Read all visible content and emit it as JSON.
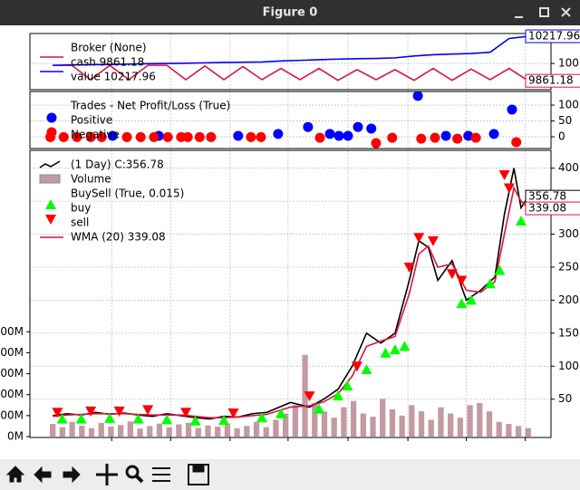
{
  "window": {
    "title": "Figure 0"
  },
  "chart_data": [
    {
      "type": "line",
      "legend_title": "Broker (None)",
      "xlim": [
        -4.8,
        104.8
      ],
      "ylim": [
        9790,
        10240
      ],
      "yticks": [
        {
          "value": 10000,
          "label": "100"
        }
      ],
      "xticks": [
        12.4,
        24.8,
        37.3,
        49.5,
        62.1,
        74.7,
        87.0,
        99.4
      ],
      "grid": true,
      "x": [
        0,
        4,
        8,
        12,
        16,
        20,
        24,
        28,
        32,
        36,
        40,
        44,
        48,
        52,
        56,
        60,
        64,
        68,
        72,
        76,
        80,
        84,
        88,
        92,
        96,
        100
      ],
      "series": [
        {
          "name": "cash 9861.18",
          "color": "#dc143c",
          "tag": true,
          "values": [
            9985,
            9985,
            9870,
            9985,
            9870,
            9985,
            9985,
            9870,
            9980,
            9870,
            9975,
            9870,
            9960,
            9870,
            9960,
            9865,
            9950,
            9870,
            9950,
            9865,
            9960,
            9865,
            9955,
            9870,
            9960,
            9861.18
          ]
        },
        {
          "name": "value 10217.96",
          "color": "#0000ff",
          "tag": true,
          "values": [
            9985,
            9988,
            9990,
            9992,
            9995,
            9998,
            10000,
            10002,
            10005,
            10008,
            10010,
            10012,
            10020,
            10025,
            10030,
            10035,
            10038,
            10040,
            10045,
            10060,
            10070,
            10075,
            10080,
            10090,
            10200,
            10217.96
          ]
        }
      ]
    },
    {
      "type": "scatter",
      "legend_title": "Trades - Net Profit/Loss (True)",
      "xlim": [
        -4.8,
        104.8
      ],
      "ylim": [
        -37,
        143
      ],
      "yticks": [
        0,
        50,
        100
      ],
      "xticks": [
        12.4,
        24.8,
        37.3,
        49.5,
        62.1,
        74.7,
        87.0,
        99.4
      ],
      "grid": true,
      "series": [
        {
          "name": "Positive",
          "color": "#0000ff",
          "x": [
            12.6,
            22.3,
            39.0,
            47.4,
            53.7,
            58.3,
            60.2,
            62.1,
            64.2,
            67.0,
            76.8,
            82.7,
            87.4,
            92.8,
            96.6
          ],
          "values": [
            3,
            3,
            3,
            9,
            31,
            9,
            3,
            3,
            31,
            26,
            129,
            3,
            3,
            9,
            86
          ]
        },
        {
          "name": "Negative",
          "color": "#ff0000",
          "x": [
            -0.5,
            2.3,
            5.1,
            8.0,
            10.3,
            15.6,
            18.5,
            21.3,
            24.2,
            27.0,
            28.4,
            30.9,
            33.3,
            41.7,
            43.8,
            56.2,
            68.0,
            71.4,
            77.5,
            80.4,
            85.1,
            89.0,
            97.5
          ],
          "values": [
            -1,
            -1,
            -1,
            -1,
            -1,
            -1,
            -1,
            -1,
            -1,
            -1,
            -1,
            -1,
            -1,
            -1,
            -1,
            -3,
            -20,
            -3,
            -6,
            -3,
            -6,
            -3,
            -17
          ]
        }
      ]
    },
    {
      "type": "line",
      "xlim": [
        -4.8,
        104.8
      ],
      "ylim": [
        -8,
        427
      ],
      "yticks": [
        50,
        100,
        150,
        200,
        250,
        300,
        350,
        400
      ],
      "xticks": [
        12.4,
        24.8,
        37.3,
        49.5,
        62.1,
        74.7,
        87.0,
        99.4
      ],
      "grid": true,
      "x": [
        0,
        3,
        6,
        9,
        12,
        15,
        18,
        21,
        24,
        27,
        30,
        33,
        36,
        39,
        42,
        45,
        50,
        54,
        57,
        60,
        63,
        66,
        69,
        72,
        75,
        77,
        79,
        81,
        84,
        87,
        90,
        93,
        95,
        97,
        98.5,
        100
      ],
      "series": [
        {
          "name": "(1 Day) C:356.78",
          "color": "#000000",
          "tag": true,
          "values": [
            25,
            28,
            26,
            30,
            27,
            29,
            26,
            24,
            28,
            25,
            22,
            20,
            24,
            23,
            28,
            30,
            45,
            38,
            50,
            65,
            100,
            150,
            135,
            150,
            230,
            290,
            280,
            230,
            260,
            200,
            215,
            235,
            330,
            400,
            340,
            356.78
          ]
        },
        {
          "name": "WMA (20) 339.08",
          "color": "#dc143c",
          "tag": true,
          "values": [
            24,
            26,
            27,
            28,
            28,
            28,
            27,
            26,
            26,
            26,
            24,
            22,
            22,
            23,
            25,
            27,
            38,
            40,
            46,
            58,
            85,
            130,
            138,
            145,
            210,
            270,
            282,
            250,
            255,
            215,
            212,
            228,
            300,
            370,
            350,
            339.08
          ]
        }
      ],
      "volume": {
        "name": "Volume",
        "color": "#c39aa2",
        "ylim": [
          0,
          1370000000
        ],
        "yticks": [
          {
            "value": 0,
            "label": "0M"
          },
          {
            "value": 100000000,
            "label": "00M"
          },
          {
            "value": 200000000,
            "label": "00M"
          },
          {
            "value": 300000000,
            "label": "00M"
          },
          {
            "value": 400000000,
            "label": "00M"
          },
          {
            "value": 500000000,
            "label": "00M"
          }
        ],
        "values": [
          60000000,
          45000000,
          70000000,
          52000000,
          40000000,
          65000000,
          48000000,
          55000000,
          72000000,
          38000000,
          50000000,
          62000000,
          44000000,
          58000000,
          66000000,
          41000000,
          53000000,
          47000000,
          60000000,
          39000000,
          51000000,
          70000000,
          45000000,
          80000000,
          110000000,
          150000000,
          390000000,
          160000000,
          120000000,
          90000000,
          140000000,
          170000000,
          110000000,
          95000000,
          180000000,
          130000000,
          100000000,
          150000000,
          120000000,
          80000000,
          140000000,
          110000000,
          90000000,
          150000000,
          160000000,
          120000000,
          70000000,
          60000000,
          50000000,
          40000000
        ]
      },
      "markers_title": "BuySell (True, 0.015)",
      "markers": [
        {
          "name": "buy",
          "color": "#00ff00",
          "shape": "up",
          "x": [
            2,
            6,
            12,
            18,
            24,
            30,
            36,
            44,
            48,
            56,
            60,
            62,
            66,
            70,
            72,
            74,
            86,
            88,
            92,
            94,
            98.5
          ],
          "values": [
            20,
            20,
            21,
            20,
            19,
            17,
            18,
            22,
            28,
            35,
            55,
            70,
            95,
            120,
            125,
            130,
            195,
            200,
            225,
            245,
            320
          ]
        },
        {
          "name": "sell",
          "color": "#ff0000",
          "shape": "down",
          "x": [
            1,
            8,
            14,
            20,
            28,
            38,
            54,
            64,
            75,
            77,
            80,
            84,
            86,
            95,
            96
          ],
          "values": [
            30,
            32,
            32,
            34,
            30,
            29,
            55,
            100,
            250,
            295,
            290,
            240,
            230,
            390,
            370
          ]
        }
      ]
    }
  ]
}
